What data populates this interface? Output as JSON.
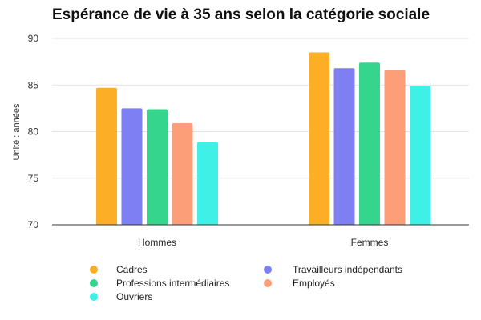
{
  "chart_data": {
    "type": "bar",
    "title": "Espérance de vie à 35 ans selon la catégorie sociale",
    "ylabel": "Unité : années",
    "xlabel": "",
    "ylim": [
      70,
      90
    ],
    "yticks": [
      70,
      75,
      80,
      85,
      90
    ],
    "grid": true,
    "legend_position": "bottom",
    "categories": [
      "Hommes",
      "Femmes"
    ],
    "series": [
      {
        "name": "Cadres",
        "color": "#FBAE26",
        "values": [
          84.7,
          88.5
        ]
      },
      {
        "name": "Travailleurs indépendants",
        "color": "#7D7FF3",
        "values": [
          82.5,
          86.8
        ]
      },
      {
        "name": "Professions intermédiaires",
        "color": "#35D58E",
        "values": [
          82.4,
          87.4
        ]
      },
      {
        "name": "Employés",
        "color": "#FC9F79",
        "values": [
          80.9,
          86.6
        ]
      },
      {
        "name": "Ouvriers",
        "color": "#3EF0E6",
        "values": [
          78.9,
          84.9
        ]
      }
    ]
  }
}
